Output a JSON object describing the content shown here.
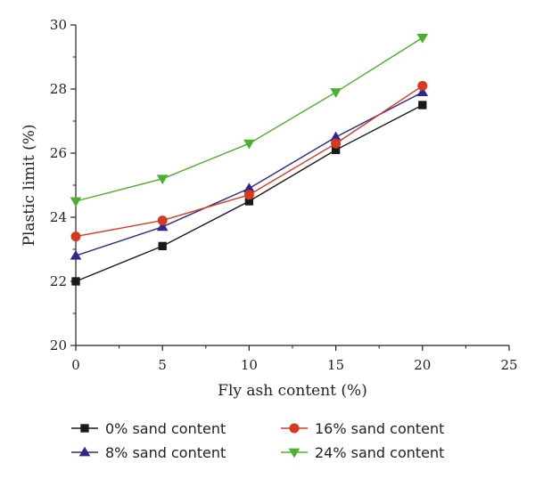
{
  "chart_data": {
    "type": "line",
    "title": "",
    "xlabel": "Fly ash content (%)",
    "ylabel": "Plastic limit (%)",
    "xlim": [
      0,
      25
    ],
    "ylim": [
      20,
      30
    ],
    "x_ticks": [
      0,
      5,
      10,
      15,
      20,
      25
    ],
    "y_ticks": [
      20,
      22,
      24,
      26,
      28,
      30
    ],
    "grid": false,
    "legend_position": "bottom",
    "x": [
      0,
      5,
      10,
      15,
      20
    ],
    "series": [
      {
        "name": "0% sand content",
        "values": [
          22.0,
          23.1,
          24.5,
          26.1,
          27.5
        ],
        "color": "#1a1a1a",
        "marker": "square"
      },
      {
        "name": "8% sand content",
        "values": [
          22.8,
          23.7,
          24.9,
          26.5,
          27.9
        ],
        "color": "#2e2a8a",
        "marker": "triangle-up"
      },
      {
        "name": "16% sand content",
        "values": [
          23.4,
          23.9,
          24.7,
          26.3,
          28.1
        ],
        "color": "#d63a1e",
        "marker": "circle"
      },
      {
        "name": "24% sand content",
        "values": [
          24.5,
          25.2,
          26.3,
          27.9,
          29.6
        ],
        "color": "#4caf2f",
        "marker": "triangle-down"
      }
    ]
  }
}
